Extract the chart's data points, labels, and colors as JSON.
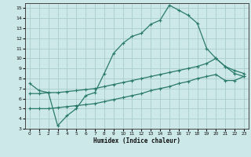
{
  "bg_color": "#cce8e8",
  "grid_color": "#aacccc",
  "line_color": "#2a7a6a",
  "xlabel": "Humidex (Indice chaleur)",
  "xlim": [
    -0.5,
    23.5
  ],
  "ylim": [
    3,
    15.5
  ],
  "xticks": [
    0,
    1,
    2,
    3,
    4,
    5,
    6,
    7,
    8,
    9,
    10,
    11,
    12,
    13,
    14,
    15,
    16,
    17,
    18,
    19,
    20,
    21,
    22,
    23
  ],
  "yticks": [
    3,
    4,
    5,
    6,
    7,
    8,
    9,
    10,
    11,
    12,
    13,
    14,
    15
  ],
  "line1_x": [
    0,
    1,
    2,
    3,
    4,
    5,
    6,
    7,
    8,
    9,
    10,
    11,
    12,
    13,
    14,
    15,
    16,
    17,
    18,
    19,
    20,
    21,
    22,
    23
  ],
  "line1_y": [
    7.5,
    6.8,
    6.6,
    3.3,
    4.3,
    5.0,
    6.3,
    6.6,
    8.5,
    10.5,
    11.5,
    12.2,
    12.5,
    13.4,
    13.8,
    15.3,
    14.8,
    14.3,
    13.5,
    11.0,
    10.0,
    9.2,
    8.5,
    8.2
  ],
  "line2_x": [
    0,
    1,
    2,
    3,
    4,
    5,
    6,
    7,
    8,
    9,
    10,
    11,
    12,
    13,
    14,
    15,
    16,
    17,
    18,
    19,
    20,
    21,
    22,
    23
  ],
  "line2_y": [
    6.5,
    6.5,
    6.6,
    6.6,
    6.7,
    6.8,
    6.9,
    7.0,
    7.2,
    7.4,
    7.6,
    7.8,
    8.0,
    8.2,
    8.4,
    8.6,
    8.8,
    9.0,
    9.2,
    9.5,
    10.0,
    9.2,
    8.8,
    8.5
  ],
  "line3_x": [
    0,
    1,
    2,
    3,
    4,
    5,
    6,
    7,
    8,
    9,
    10,
    11,
    12,
    13,
    14,
    15,
    16,
    17,
    18,
    19,
    20,
    21,
    22,
    23
  ],
  "line3_y": [
    5.0,
    5.0,
    5.0,
    5.1,
    5.2,
    5.3,
    5.4,
    5.5,
    5.7,
    5.9,
    6.1,
    6.3,
    6.5,
    6.8,
    7.0,
    7.2,
    7.5,
    7.7,
    8.0,
    8.2,
    8.4,
    7.8,
    7.8,
    8.2
  ]
}
